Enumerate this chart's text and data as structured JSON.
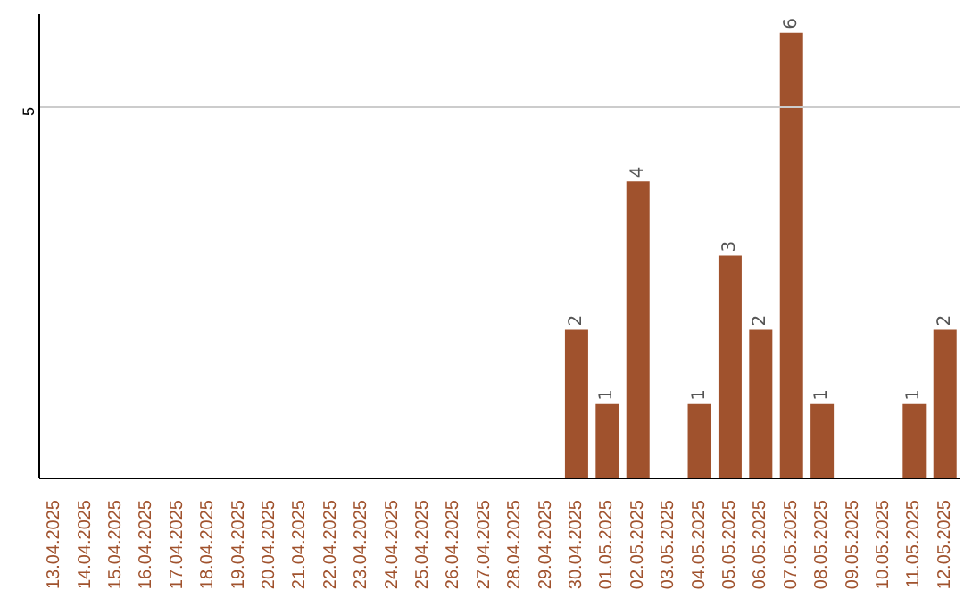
{
  "chart_data": {
    "type": "bar",
    "categories": [
      "13.04.2025",
      "14.04.2025",
      "15.04.2025",
      "16.04.2025",
      "17.04.2025",
      "18.04.2025",
      "19.04.2025",
      "20.04.2025",
      "21.04.2025",
      "22.04.2025",
      "23.04.2025",
      "24.04.2025",
      "25.04.2025",
      "26.04.2025",
      "27.04.2025",
      "28.04.2025",
      "29.04.2025",
      "30.04.2025",
      "01.05.2025",
      "02.05.2025",
      "03.05.2025",
      "04.05.2025",
      "05.05.2025",
      "06.05.2025",
      "07.05.2025",
      "08.05.2025",
      "09.05.2025",
      "10.05.2025",
      "11.05.2025",
      "12.05.2025"
    ],
    "values": [
      null,
      null,
      null,
      null,
      null,
      null,
      null,
      null,
      null,
      null,
      null,
      null,
      null,
      null,
      null,
      null,
      null,
      2,
      1,
      4,
      null,
      1,
      3,
      2,
      6,
      1,
      null,
      null,
      1,
      2
    ],
    "data_labels": true,
    "color": "#a0522d",
    "ylim": [
      0,
      6.25
    ],
    "ref_lines": [
      {
        "axis": "y",
        "value": 5,
        "label": "5",
        "color": "#cccccc"
      }
    ]
  }
}
